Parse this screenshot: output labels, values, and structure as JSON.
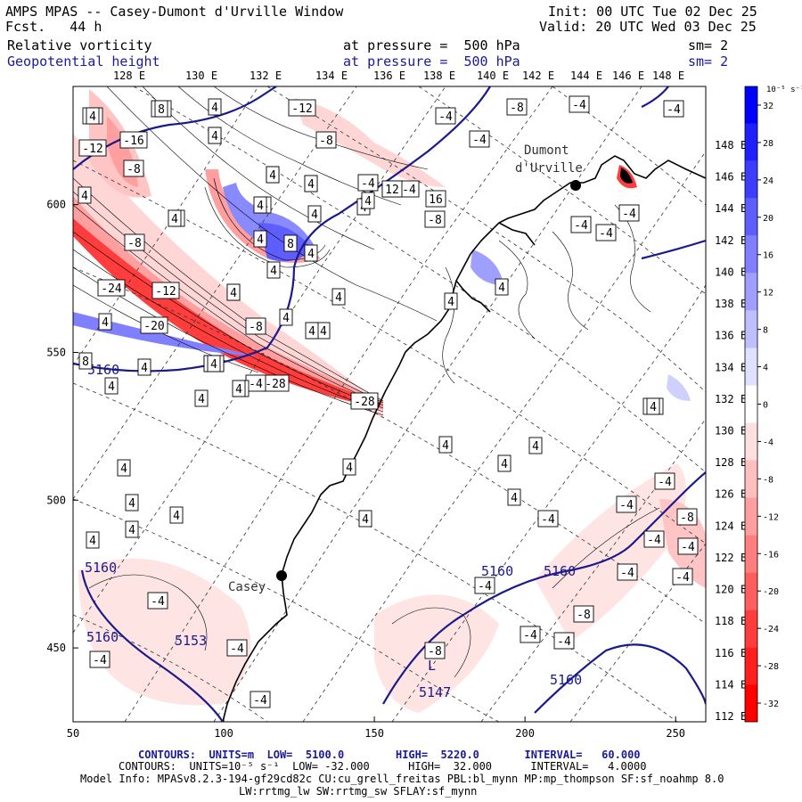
{
  "header": {
    "title": "AMPS MPAS -- Casey-Dumont d'Urville Window",
    "forecast": "Fcst.   44 h",
    "init": "Init: 00 UTC Tue 02 Dec 25",
    "valid": "Valid: 20 UTC Wed 03 Dec 25",
    "field1_name": "Relative vorticity",
    "field1_level": "at pressure =  500 hPa",
    "field1_sm": "sm= 2",
    "field2_name": "Geopotential height",
    "field2_level": "at pressure =  500 hPa",
    "field2_sm": "sm= 2"
  },
  "top_longitudes": [
    "128 E",
    "130 E",
    "132 E",
    "134 E",
    "136 E",
    "138 E",
    "140 E",
    "142 E",
    "144 E",
    "146 E",
    "148 E"
  ],
  "right_longitudes": [
    "148 E",
    "146 E",
    "144 E",
    "142 E",
    "140 E",
    "138 E",
    "136 E",
    "134 E",
    "132 E",
    "130 E",
    "128 E",
    "126 E",
    "124 E",
    "122 E",
    "120 E",
    "118 E",
    "116 E",
    "114 E",
    "112 E"
  ],
  "x_ticks": [
    "50",
    "100",
    "150",
    "200",
    "250"
  ],
  "y_ticks": [
    "600",
    "550",
    "500",
    "450"
  ],
  "colorbar": {
    "unit_label": "10⁻⁵ s⁻¹",
    "labels": [
      "32",
      "28",
      "24",
      "20",
      "16",
      "12",
      "8",
      "4",
      "0",
      "-4",
      "-8",
      "-12",
      "-16",
      "-20",
      "-24",
      "-28",
      "-32"
    ],
    "colors": [
      "#0000ff",
      "#1f1fff",
      "#3d3dff",
      "#5e5eff",
      "#7f7fff",
      "#9f9fff",
      "#bfbfff",
      "#e0e0ff",
      "#ffffff",
      "#ffe0e0",
      "#ffbfbf",
      "#ff9f9f",
      "#ff7f7f",
      "#ff5e5e",
      "#ff3d3d",
      "#ff1f1f",
      "#ff0000"
    ]
  },
  "places": {
    "dumont": "Dumont",
    "durville": "d'Urville",
    "casey": "Casey"
  },
  "height_labels": [
    "5160",
    "5160",
    "5160",
    "5160",
    "5160",
    "5153",
    "5147",
    "5160"
  ],
  "low_marker": "L",
  "vort_labels": [
    "-8",
    "-8",
    "-12",
    "-16",
    "-8",
    "-8",
    "-24",
    "-12",
    "-20",
    "-8",
    "-8",
    "-28",
    "-28",
    "-12",
    "-8",
    "-4",
    "-8",
    "-4",
    "-4",
    "-4",
    "-8",
    "-4",
    "-4",
    "-4",
    "-4",
    "-4",
    "-4",
    "-4",
    "-8",
    "-4",
    "-4",
    "-4",
    "-8",
    "-4",
    "-4",
    "-4",
    "-4",
    "-4",
    "-8",
    "-4",
    "-4",
    "-4",
    "-8",
    "-4",
    "-4",
    "-4",
    "-4",
    "-4",
    "4",
    "4",
    "8",
    "4",
    "4",
    "4",
    "4",
    "4",
    "4",
    "4",
    "4",
    "4",
    "4",
    "4",
    "8",
    "12",
    "16",
    "4",
    "4",
    "4",
    "4",
    "8",
    "4",
    "4",
    "4",
    "4",
    "4",
    "4",
    "4",
    "4",
    "4",
    "4",
    "4",
    "4",
    "4",
    "4",
    "4",
    "4",
    "4",
    "4",
    "4",
    "4",
    "4",
    "4",
    "4",
    "4",
    "4",
    "4",
    "4",
    "8"
  ],
  "footer": {
    "line1": "CONTOURS:  UNITS=m  LOW=  5100.0        HIGH=  5220.0       INTERVAL=   60.000",
    "line2": "CONTOURS:  UNITS=10⁻⁵ s⁻¹  LOW= -32.000      HIGH=  32.000      INTERVAL=   4.0000",
    "line3": "Model Info: MPASv8.2.3-194-gf29cd82c CU:cu_grell_freitas PBL:bl_mynn MP:mp_thompson SF:sf_noahmp 8.0",
    "line4": "LW:rrtmg_lw SW:rrtmg_sw SFLAY:sf_mynn"
  }
}
